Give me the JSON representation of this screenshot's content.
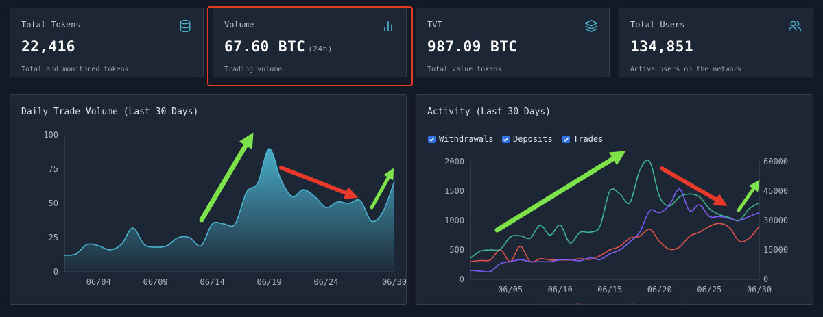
{
  "stats": [
    {
      "label": "Total Tokens",
      "value": "22,416",
      "suffix": "",
      "desc": "Total and monitored tokens",
      "icon": "database-icon"
    },
    {
      "label": "Volume",
      "value": "67.60 BTC",
      "suffix": "(24h)",
      "desc": "Trading volume",
      "icon": "bar-chart-icon"
    },
    {
      "label": "TVT",
      "value": "987.09 BTC",
      "suffix": "",
      "desc": "Total value tokens",
      "icon": "layers-icon"
    },
    {
      "label": "Total Users",
      "value": "134,851",
      "suffix": "",
      "desc": "Active users on the network",
      "icon": "users-icon"
    }
  ],
  "colors": {
    "accent": "#4bb3cf",
    "withdrawals": "#e0524a",
    "deposits": "#3fb58f",
    "trades": "#7d5cf5",
    "highlight": "#e43a22",
    "arrow_up": "#7ee24a",
    "arrow_down": "#e8392a",
    "checkbox": "#2f72e6"
  },
  "daily_chart": {
    "title": "Daily Trade Volume (Last 30 Days)"
  },
  "activity_chart": {
    "title": "Activity (Last 30 Days)",
    "checkboxes": [
      {
        "label": "Withdrawals",
        "checked": true
      },
      {
        "label": "Deposits",
        "checked": true
      },
      {
        "label": "Trades",
        "checked": true
      }
    ],
    "bottom_legend": [
      "Withdrawals",
      "Deposits",
      "Trades"
    ]
  },
  "chart_data": [
    {
      "type": "area",
      "title": "Daily Trade Volume (Last 30 Days)",
      "x": [
        "06/01",
        "06/02",
        "06/03",
        "06/04",
        "06/05",
        "06/06",
        "06/07",
        "06/08",
        "06/09",
        "06/10",
        "06/11",
        "06/12",
        "06/13",
        "06/14",
        "06/15",
        "06/16",
        "06/17",
        "06/18",
        "06/19",
        "06/20",
        "06/21",
        "06/22",
        "06/23",
        "06/24",
        "06/25",
        "06/26",
        "06/27",
        "06/28",
        "06/29",
        "06/30"
      ],
      "x_ticks": [
        "06/04",
        "06/09",
        "06/14",
        "06/19",
        "06/24",
        "06/30"
      ],
      "series": [
        {
          "values": [
            12,
            13,
            20,
            19,
            16,
            20,
            32,
            20,
            18,
            19,
            25,
            25,
            19,
            35,
            35,
            35,
            58,
            65,
            90,
            68,
            55,
            60,
            55,
            47,
            51,
            50,
            52,
            37,
            44,
            66
          ]
        }
      ],
      "ylim": [
        0,
        100
      ],
      "y_ticks": [
        0,
        25,
        50,
        75,
        100
      ],
      "grid": false
    },
    {
      "type": "line",
      "title": "Activity (Last 30 Days)",
      "x": [
        "06/01",
        "06/02",
        "06/03",
        "06/04",
        "06/05",
        "06/06",
        "06/07",
        "06/08",
        "06/09",
        "06/10",
        "06/11",
        "06/12",
        "06/13",
        "06/14",
        "06/15",
        "06/16",
        "06/17",
        "06/18",
        "06/19",
        "06/20",
        "06/21",
        "06/22",
        "06/23",
        "06/24",
        "06/25",
        "06/26",
        "06/27",
        "06/28",
        "06/29",
        "06/30"
      ],
      "x_ticks": [
        "06/05",
        "06/10",
        "06/15",
        "06/20",
        "06/25",
        "06/30"
      ],
      "y_left": {
        "ticks": [
          0,
          500,
          1000,
          1500,
          2000
        ],
        "range": [
          0,
          2000
        ]
      },
      "y_right": {
        "ticks": [
          0,
          15000,
          30000,
          45000,
          60000
        ],
        "range": [
          0,
          60000
        ]
      },
      "series": [
        {
          "name": "Withdrawals",
          "axis": "left",
          "values": [
            300,
            320,
            330,
            500,
            300,
            560,
            300,
            350,
            330,
            330,
            330,
            350,
            340,
            400,
            500,
            560,
            700,
            730,
            850,
            640,
            510,
            550,
            730,
            800,
            900,
            950,
            880,
            650,
            700,
            900
          ]
        },
        {
          "name": "Deposits",
          "axis": "left",
          "values": [
            360,
            480,
            500,
            510,
            720,
            740,
            700,
            920,
            750,
            920,
            620,
            800,
            800,
            900,
            1500,
            1450,
            1300,
            1850,
            2000,
            1400,
            1250,
            1400,
            1450,
            1400,
            1200,
            1100,
            1050,
            1000,
            1200,
            1300
          ]
        },
        {
          "name": "Trades",
          "axis": "right",
          "values": [
            4500,
            4200,
            4000,
            8000,
            9000,
            10000,
            9000,
            9000,
            9000,
            10000,
            10000,
            9500,
            11000,
            10000,
            13000,
            15000,
            19000,
            24000,
            35000,
            34000,
            38000,
            46000,
            35000,
            38000,
            32000,
            32000,
            31000,
            30000,
            32000,
            34000
          ]
        }
      ],
      "legend": "bottom",
      "grid": false
    }
  ]
}
